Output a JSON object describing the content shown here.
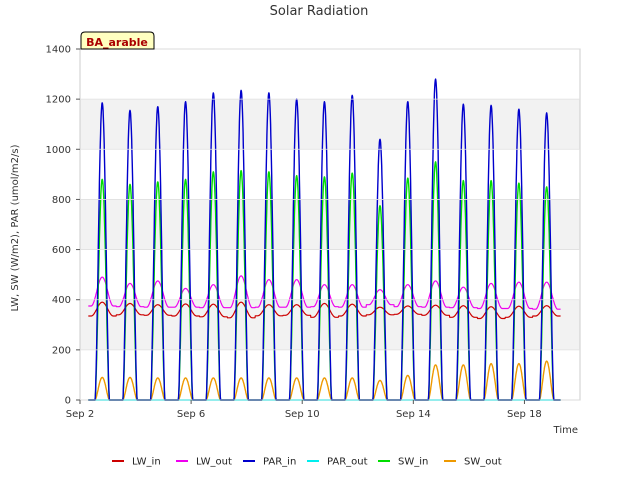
{
  "chart_data": {
    "type": "line",
    "title": "Solar Radiation",
    "xlabel": "Time",
    "ylabel": "LW, SW (W/m2), PAR (umol/m2/s)",
    "station_label": "BA_arable",
    "xlim": [
      2.0,
      20.0
    ],
    "ylim": [
      0,
      1400
    ],
    "x_ticks": [
      {
        "value": 2,
        "label": "Sep 2"
      },
      {
        "value": 6,
        "label": "Sep 6"
      },
      {
        "value": 10,
        "label": "Sep 10"
      },
      {
        "value": 14,
        "label": "Sep 14"
      },
      {
        "value": 18,
        "label": "Sep 18"
      }
    ],
    "y_ticks": [
      0,
      200,
      400,
      600,
      800,
      1000,
      1200,
      1400
    ],
    "bands": [
      [
        200,
        400
      ],
      [
        600,
        800
      ],
      [
        1000,
        1200
      ]
    ],
    "data_start_day": 2.3,
    "data_end_day": 19.3,
    "day_centers": [
      2.8,
      3.8,
      4.8,
      5.8,
      6.8,
      7.8,
      8.8,
      9.8,
      10.8,
      11.8,
      12.8,
      13.8,
      14.8,
      15.8,
      16.8,
      17.8,
      18.8
    ],
    "series": [
      {
        "name": "LW_in",
        "color": "#cc0000",
        "kind": "lw",
        "night": [
          335,
          340,
          338,
          335,
          332,
          328,
          336,
          338,
          330,
          335,
          340,
          342,
          338,
          330,
          325,
          330,
          335
        ],
        "peak": [
          390,
          385,
          380,
          383,
          382,
          390,
          380,
          380,
          385,
          382,
          370,
          375,
          378,
          376,
          372,
          374,
          376
        ]
      },
      {
        "name": "LW_out",
        "color": "#ee00ee",
        "kind": "lw",
        "night": [
          375,
          372,
          370,
          370,
          368,
          368,
          370,
          370,
          372,
          370,
          380,
          372,
          370,
          368,
          365,
          365,
          362
        ],
        "peak": [
          490,
          465,
          475,
          445,
          460,
          495,
          480,
          480,
          460,
          460,
          440,
          460,
          475,
          450,
          465,
          470,
          470
        ]
      },
      {
        "name": "PAR_in",
        "color": "#0000cc",
        "kind": "day",
        "peaks": [
          1185,
          1155,
          1170,
          1190,
          1225,
          1235,
          1225,
          1200,
          1190,
          1215,
          1040,
          1190,
          1280,
          1180,
          1175,
          1160,
          1145
        ]
      },
      {
        "name": "PAR_out",
        "color": "#00eeee",
        "kind": "day",
        "peaks": [
          0,
          0,
          0,
          0,
          0,
          0,
          0,
          0,
          0,
          0,
          0,
          0,
          0,
          0,
          0,
          0,
          0
        ]
      },
      {
        "name": "SW_in",
        "color": "#00dd00",
        "kind": "day",
        "peaks": [
          880,
          860,
          870,
          880,
          910,
          915,
          910,
          895,
          890,
          905,
          775,
          885,
          950,
          875,
          875,
          865,
          850
        ]
      },
      {
        "name": "SW_out",
        "color": "#ee9900",
        "kind": "day",
        "peaks": [
          90,
          90,
          88,
          88,
          88,
          88,
          88,
          88,
          88,
          88,
          78,
          98,
          140,
          140,
          145,
          145,
          155
        ]
      }
    ]
  }
}
